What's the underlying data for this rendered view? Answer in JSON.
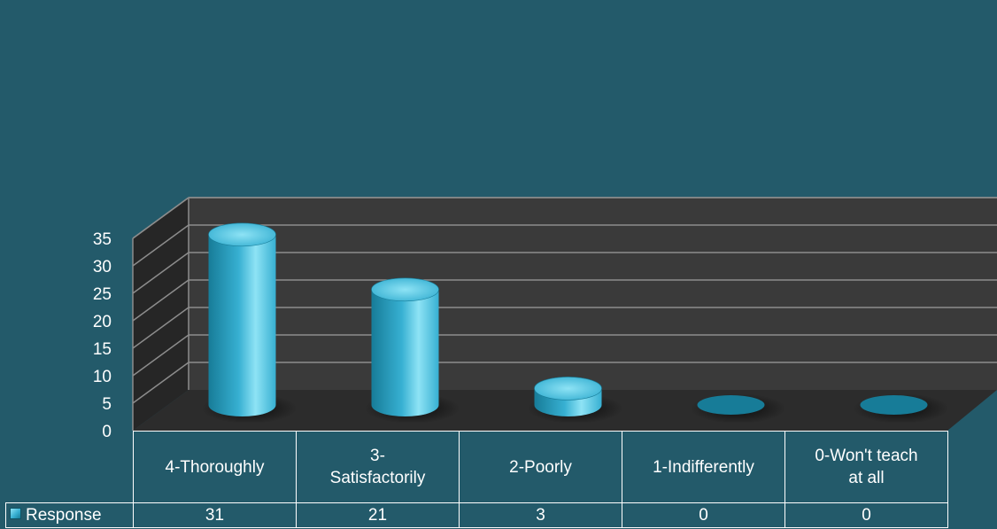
{
  "chart_data": {
    "type": "bar",
    "categories": [
      "4-Thoroughly",
      "3-Satisfactorily",
      "2-Poorly",
      "1-Indifferently",
      "0-Won't teach at all"
    ],
    "category_lines": [
      [
        "4-Thoroughly"
      ],
      [
        "3-",
        "Satisfactorily"
      ],
      [
        "2-Poorly"
      ],
      [
        "1-Indifferently"
      ],
      [
        "0-Won't teach",
        "at all"
      ]
    ],
    "series": [
      {
        "name": "Response",
        "values": [
          31,
          21,
          3,
          0,
          0
        ]
      }
    ],
    "y_ticks": [
      "0",
      "5",
      "10",
      "15",
      "20",
      "25",
      "30",
      "35"
    ],
    "ylim": [
      0,
      35
    ],
    "title": "",
    "xlabel": "",
    "ylabel": "",
    "grid": true,
    "style": "3d-cylinder",
    "data_table": true,
    "legend_position": "in-data-table"
  },
  "colors": {
    "background": "#235a6a",
    "back_wall": "#3a3a3a",
    "side_wall": "#262626",
    "floor": "#2c2c2c",
    "gridline": "#8c8c8c",
    "bar_light": "#8ee3f5",
    "bar_mid": "#37b0d2",
    "bar_dark": "#177c98",
    "text": "#ffffff"
  }
}
